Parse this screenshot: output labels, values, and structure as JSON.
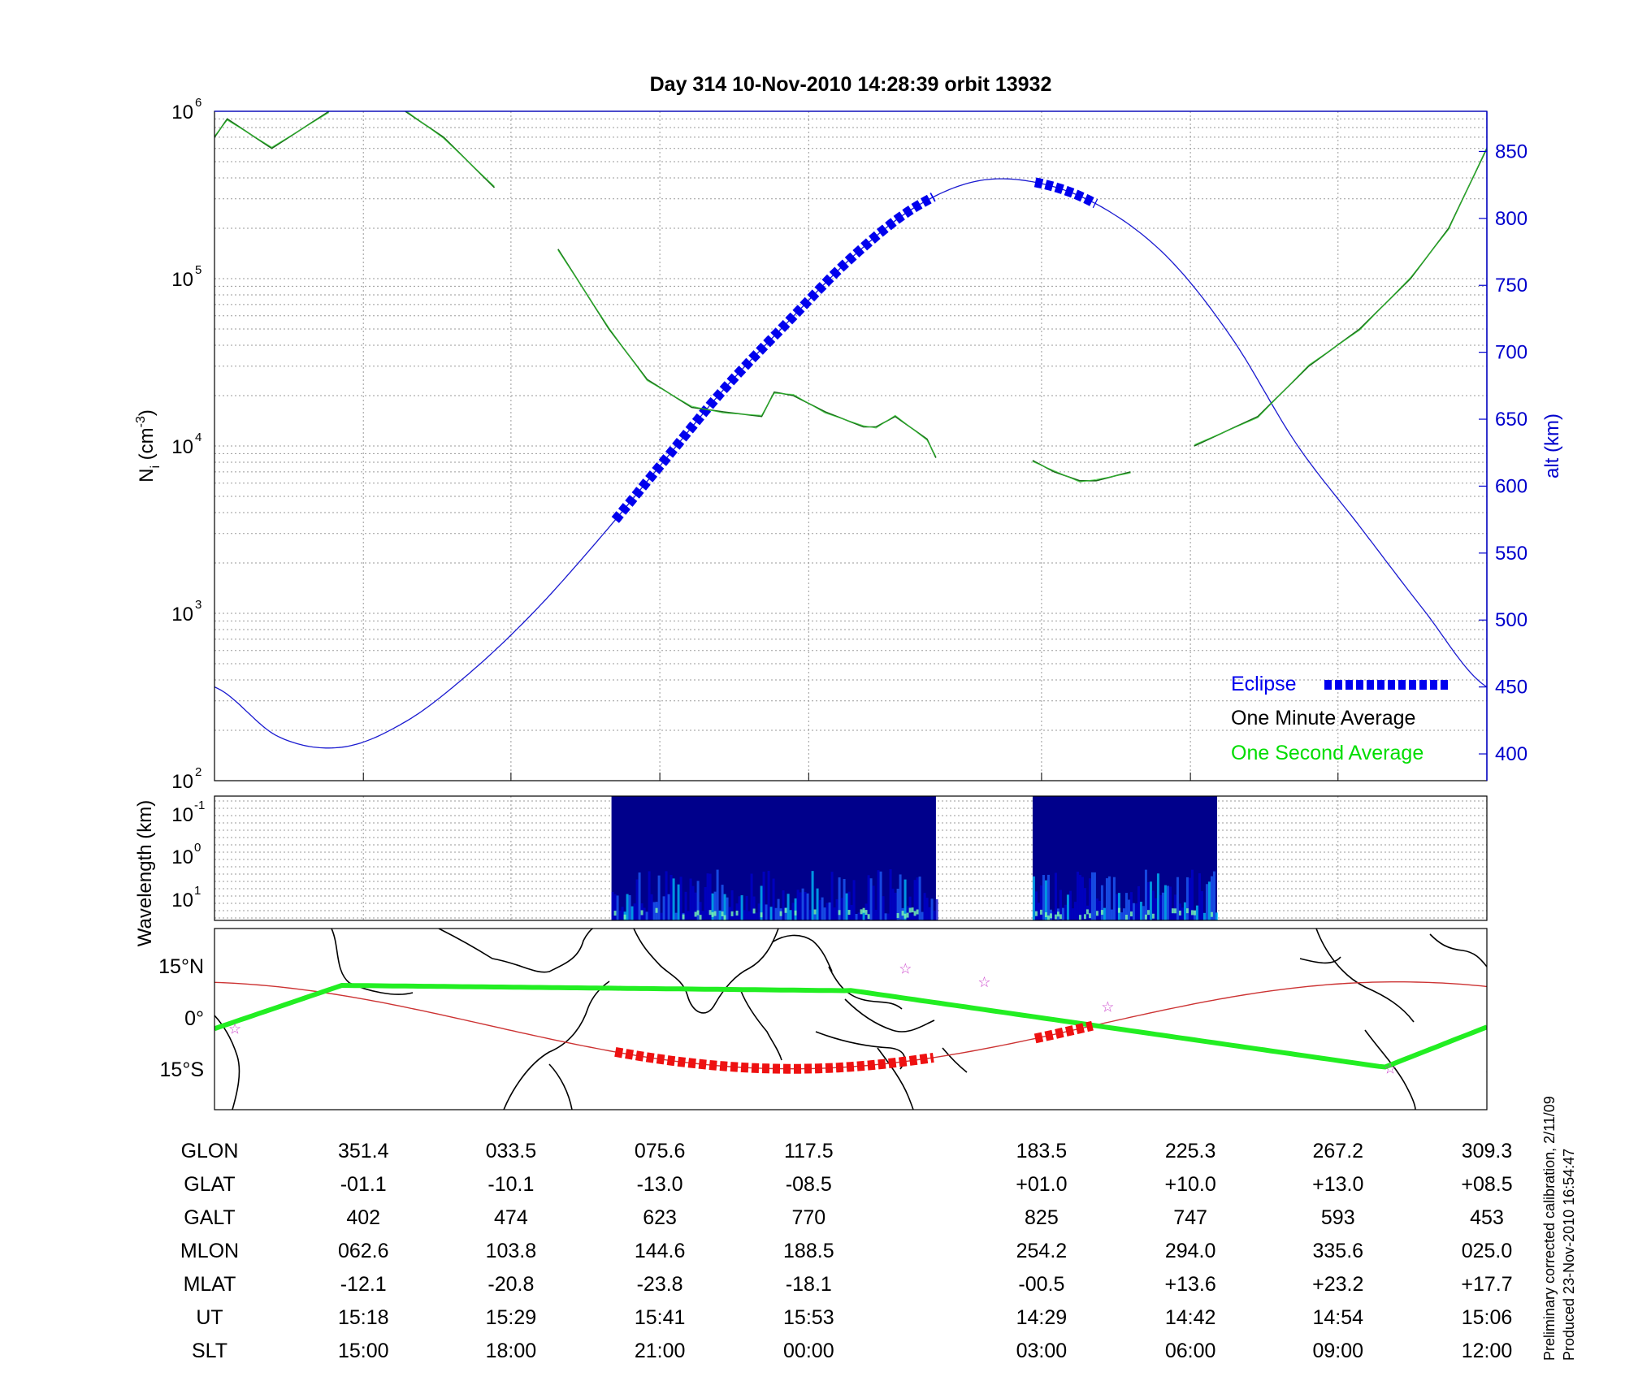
{
  "chart_data": [
    {
      "type": "line",
      "title": "Day 314  10-Nov-2010 14:28:39   orbit 13932",
      "ylabel_left": "N",
      "ylabel_left_sub": "i",
      "ylabel_left_unit_pre": "(cm",
      "ylabel_left_unit_exp": "-3",
      "ylabel_left_unit_post": ")",
      "ylabel_right": "alt (km)",
      "y_scale": "log",
      "ylim": [
        100,
        1000000
      ],
      "y_ticks": [
        {
          "base": "10",
          "exp": "2",
          "value": 100
        },
        {
          "base": "10",
          "exp": "3",
          "value": 1000
        },
        {
          "base": "10",
          "exp": "4",
          "value": 10000
        },
        {
          "base": "10",
          "exp": "5",
          "value": 100000
        },
        {
          "base": "10",
          "exp": "6",
          "value": 1000000
        }
      ],
      "y2lim": [
        380,
        880
      ],
      "y2_ticks": [
        "400",
        "450",
        "500",
        "550",
        "600",
        "650",
        "700",
        "750",
        "800",
        "850"
      ],
      "grid": true,
      "legend_position": "bottom-right",
      "legend": [
        {
          "label": "Eclipse",
          "color": "#0000ff",
          "style": "thick-dashed"
        },
        {
          "label": "One Minute Average",
          "color": "#000000",
          "style": "line"
        },
        {
          "label": "One Second Average",
          "color": "#00dd00",
          "style": "line"
        }
      ],
      "series": [
        {
          "name": "Eclipse",
          "note": "altitude trace (right axis); thick dashed where in eclipse",
          "eclipse_segments": [
            [
              0.315,
              0.567
            ],
            [
              0.643,
              0.693
            ]
          ],
          "x": [
            0.0,
            0.05,
            0.1,
            0.15,
            0.2,
            0.25,
            0.3,
            0.35,
            0.4,
            0.45,
            0.5,
            0.55,
            0.6,
            0.65,
            0.7,
            0.75,
            0.8,
            0.85,
            0.9,
            0.95,
            1.0
          ],
          "alt_km": [
            450,
            413,
            405,
            424,
            460,
            505,
            558,
            615,
            672,
            722,
            770,
            808,
            828,
            826,
            807,
            770,
            710,
            632,
            570,
            508,
            450
          ]
        },
        {
          "name": "One Minute Average",
          "x": [
            0.0,
            0.01,
            0.045,
            0.09,
            0.15,
            0.18,
            0.22,
            0.27,
            0.31,
            0.34,
            0.375,
            0.4,
            0.43,
            0.44,
            0.455,
            0.48,
            0.51,
            0.52,
            0.535,
            0.56,
            0.567,
            0.643,
            0.66,
            0.68,
            0.693,
            0.72,
            0.77,
            0.82,
            0.86,
            0.9,
            0.94,
            0.97,
            1.0
          ],
          "y": [
            700000,
            900000,
            600000,
            1000000,
            1000000,
            700000,
            350000,
            150000,
            50000,
            25000,
            17000,
            16000,
            15000,
            21000,
            20000,
            16000,
            13000,
            13000,
            15000,
            11000,
            8500,
            8200,
            7000,
            6200,
            6200,
            7000,
            10000,
            15000,
            30000,
            50000,
            100000,
            200000,
            600000
          ]
        }
      ],
      "x_positions_frac_of_track": [
        0.117,
        0.233,
        0.35,
        0.467,
        0.65,
        0.767,
        0.883,
        1.0
      ]
    },
    {
      "type": "heatmap",
      "ylabel": "Wavelength (km)",
      "y_ticks": [
        {
          "base": "10",
          "exp": "-1"
        },
        {
          "base": "10",
          "exp": "0"
        },
        {
          "base": "10",
          "exp": "1"
        }
      ],
      "colorscale": [
        "#00008b",
        "#0000cd",
        "#1e62ff",
        "#00c8ff",
        "#7dffb0"
      ],
      "data_segments": [
        [
          0.312,
          0.567
        ],
        [
          0.643,
          0.788
        ]
      ]
    },
    {
      "type": "map",
      "y_ticks": [
        "15°N",
        "0°",
        "15°S"
      ],
      "ground_track_color": "#22ee22",
      "magnetic_equator_color": "#cc3333",
      "eclipse_color": "#ee1111",
      "stars_color": "#cc44cc"
    }
  ],
  "ephemeris": {
    "rows": [
      {
        "label": "GLON",
        "values": [
          "351.4",
          "033.5",
          "075.6",
          "117.5",
          "183.5",
          "225.3",
          "267.2",
          "309.3"
        ]
      },
      {
        "label": "GLAT",
        "values": [
          "-01.1",
          "-10.1",
          "-13.0",
          "-08.5",
          "+01.0",
          "+10.0",
          "+13.0",
          "+08.5"
        ]
      },
      {
        "label": "GALT",
        "values": [
          "402",
          "474",
          "623",
          "770",
          "825",
          "747",
          "593",
          "453"
        ]
      },
      {
        "label": "MLON",
        "values": [
          "062.6",
          "103.8",
          "144.6",
          "188.5",
          "254.2",
          "294.0",
          "335.6",
          "025.0"
        ]
      },
      {
        "label": "MLAT",
        "values": [
          "-12.1",
          "-20.8",
          "-23.8",
          "-18.1",
          "-00.5",
          "+13.6",
          "+23.2",
          "+17.7"
        ]
      },
      {
        "label": "UT",
        "values": [
          "15:18",
          "15:29",
          "15:41",
          "15:53",
          "14:29",
          "14:42",
          "14:54",
          "15:06"
        ]
      },
      {
        "label": "SLT",
        "values": [
          "15:00",
          "18:00",
          "21:00",
          "00:00",
          "03:00",
          "06:00",
          "09:00",
          "12:00"
        ]
      }
    ]
  },
  "footnote": {
    "line1": "Preliminary corrected calibration, 2/11/09",
    "line2": "Produced 23-Nov-2010 16:54:47"
  }
}
